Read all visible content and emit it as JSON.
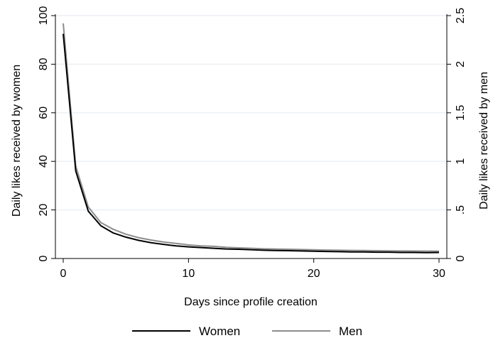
{
  "chart_data": {
    "type": "line",
    "title": "",
    "xlabel": "Days since profile creation",
    "ylabel": "Daily likes received by women",
    "y2label": "Daily likes received by men",
    "xlim": [
      0,
      30
    ],
    "ylim": [
      0,
      100
    ],
    "y2lim": [
      0,
      2.5
    ],
    "xticks": [
      0,
      10,
      20,
      30
    ],
    "xtick_labels": [
      "0",
      "10",
      "20",
      "30"
    ],
    "yticks": [
      0,
      20,
      40,
      60,
      80,
      100
    ],
    "ytick_labels": [
      "0",
      "20",
      "40",
      "60",
      "80",
      "100"
    ],
    "y2ticks": [
      0,
      0.5,
      1,
      1.5,
      2,
      2.5
    ],
    "y2tick_labels": [
      "0",
      ".5",
      "1",
      "1.5",
      "2",
      "2.5"
    ],
    "grid": "horizontal",
    "legend_position": "bottom",
    "x": [
      0,
      1,
      2,
      3,
      4,
      5,
      6,
      7,
      8,
      9,
      10,
      11,
      12,
      13,
      14,
      15,
      16,
      17,
      18,
      19,
      20,
      21,
      22,
      23,
      24,
      25,
      26,
      27,
      28,
      29,
      30
    ],
    "series": [
      {
        "name": "Women",
        "axis": "left",
        "color": "#000000",
        "values": [
          92.5,
          36,
          19.5,
          13.5,
          10.5,
          8.8,
          7.5,
          6.5,
          5.8,
          5.2,
          4.8,
          4.5,
          4.2,
          3.9,
          3.8,
          3.6,
          3.4,
          3.3,
          3.2,
          3.1,
          3,
          2.9,
          2.8,
          2.7,
          2.7,
          2.6,
          2.6,
          2.5,
          2.5,
          2.4,
          2.5
        ]
      },
      {
        "name": "Men",
        "axis": "right",
        "color": "#8c8c8c",
        "values": [
          2.42,
          0.95,
          0.53,
          0.37,
          0.3,
          0.25,
          0.215,
          0.19,
          0.17,
          0.155,
          0.14,
          0.13,
          0.125,
          0.115,
          0.11,
          0.105,
          0.1,
          0.097,
          0.095,
          0.092,
          0.09,
          0.087,
          0.085,
          0.083,
          0.082,
          0.08,
          0.079,
          0.078,
          0.077,
          0.076,
          0.075
        ]
      }
    ]
  }
}
